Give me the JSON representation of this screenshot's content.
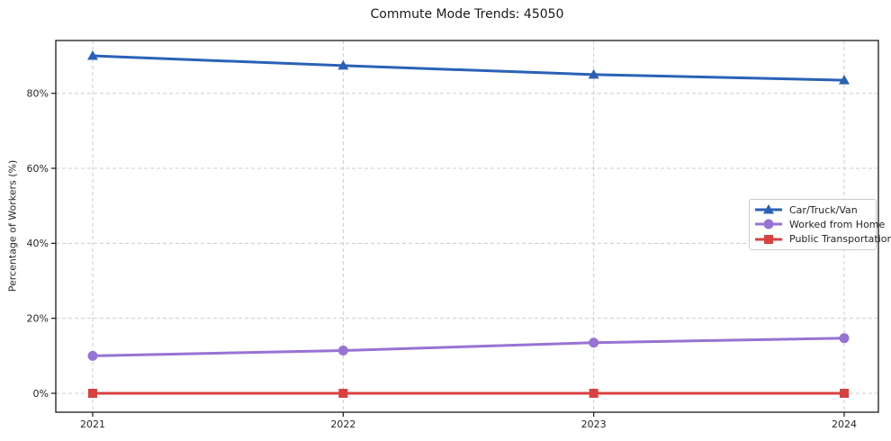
{
  "chart_data": {
    "type": "line",
    "title": "Commute Mode Trends: 45050",
    "xlabel": "",
    "ylabel": "Percentage of Workers (%)",
    "categories": [
      "2021",
      "2022",
      "2023",
      "2024"
    ],
    "series": [
      {
        "name": "Car/Truck/Van",
        "color": "#2b62b8",
        "marker": "triangle",
        "values": [
          90.0,
          87.4,
          85.0,
          83.5
        ]
      },
      {
        "name": "Worked from Home",
        "color": "#9673d4",
        "marker": "circle",
        "values": [
          10.0,
          11.4,
          13.5,
          14.7
        ]
      },
      {
        "name": "Public Transportation",
        "color": "#d94040",
        "marker": "square",
        "values": [
          0.0,
          0.0,
          0.0,
          0.0
        ]
      }
    ],
    "y_ticks": {
      "values": [
        0,
        20,
        40,
        60,
        80
      ],
      "labels": [
        "0%",
        "20%",
        "40%",
        "60%",
        "80%"
      ]
    },
    "ylim": [
      -5,
      94.3
    ],
    "grid": "dashed",
    "legend_position": "center-right"
  },
  "colors": {
    "background": "#ffffff",
    "grid": "#cccccc",
    "spine": "#1a1a1a",
    "text": "#262626",
    "legend_border": "#cccccc"
  }
}
